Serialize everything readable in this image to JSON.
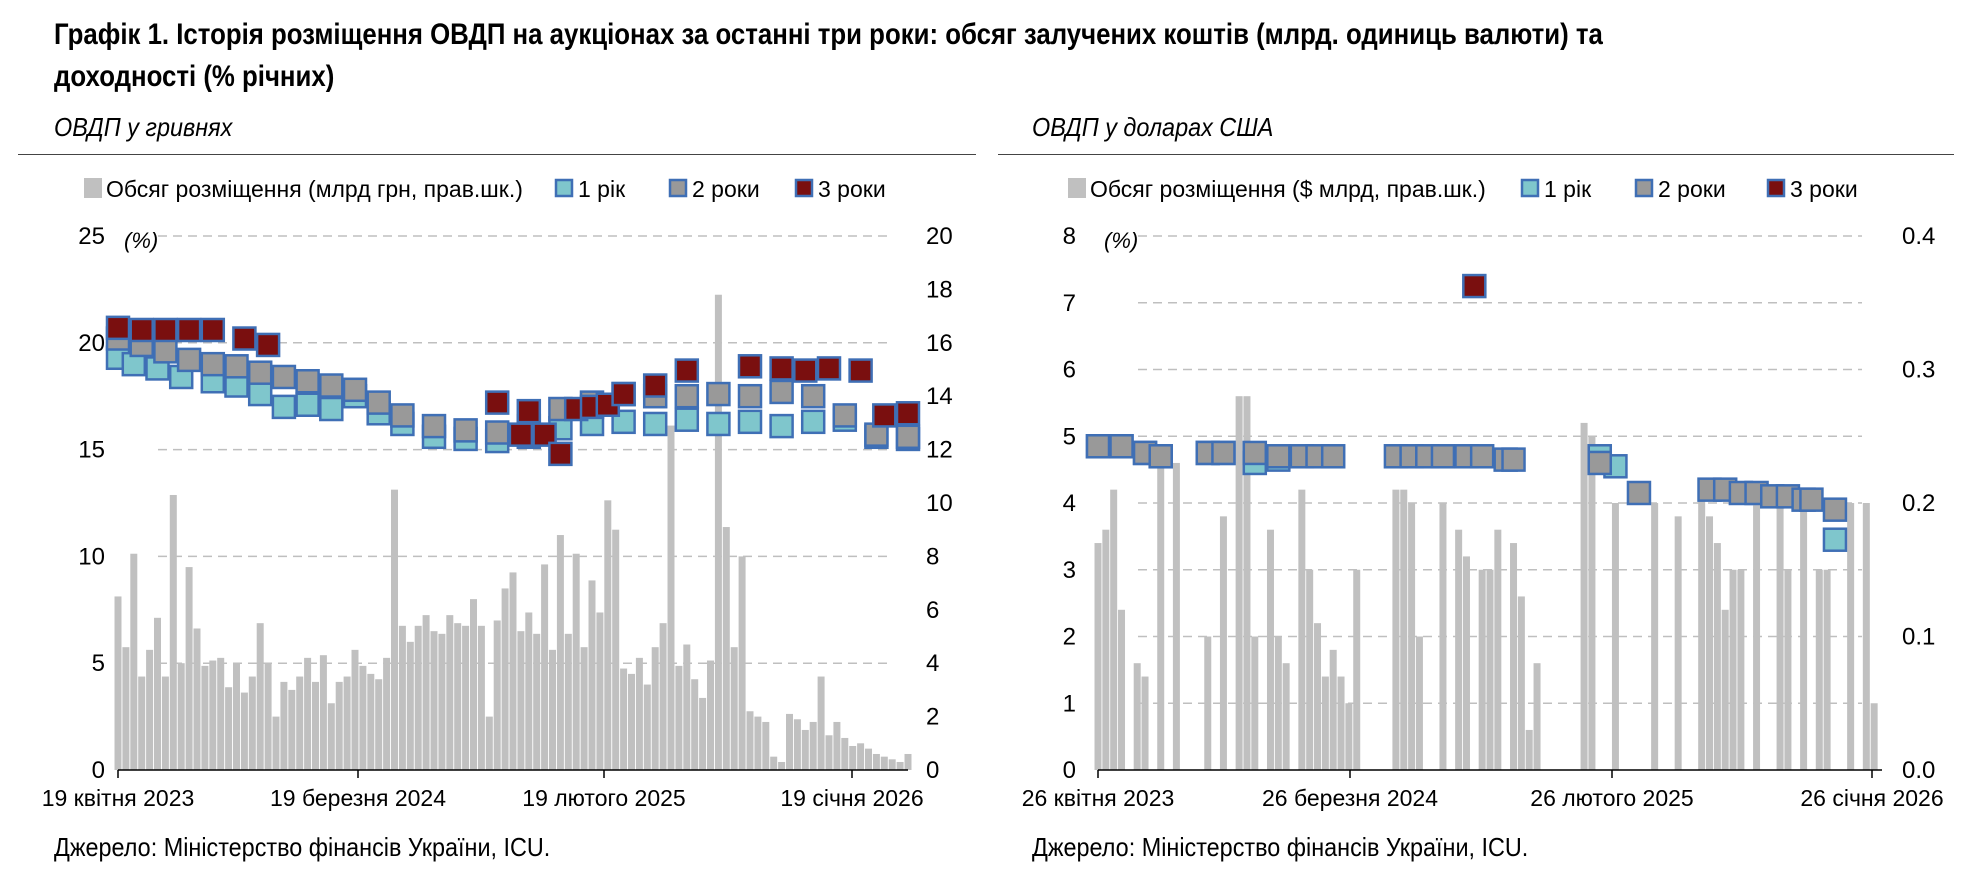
{
  "title": "Графік 1. Історія розміщення ОВДП на аукціонах за останні три роки: обсяг залучених коштів (млрд. одиниць валюти) та доходності (% річних)",
  "source": "Джерело: Міністерство фінансів України, ICU.",
  "colors": {
    "volume": "#c0c0c0",
    "y1": "#7fc6cc",
    "y2": "#999999",
    "y3": "#7a0f0f",
    "marker_edge": "#3f6fb5",
    "grid": "#bfbfbf"
  },
  "chart_data": [
    {
      "type": "bar",
      "subtitle": "ОВДП у гривнях",
      "units_label": "(%)",
      "legend": [
        "Обсяг розміщення (млрд грн, прав.шк.)",
        "1 рік",
        "2 роки",
        "3 роки"
      ],
      "x_ticks": [
        "19 квітня 2023",
        "19 березня 2024",
        "19 лютого 2025",
        "19 січня 2026"
      ],
      "y_left": {
        "min": 0,
        "max": 25,
        "ticks": [
          0,
          5,
          10,
          15,
          20,
          25
        ]
      },
      "y_right": {
        "min": 0,
        "max": 20,
        "ticks": [
          0,
          2,
          4,
          6,
          8,
          10,
          12,
          14,
          16,
          18,
          20
        ]
      },
      "x_range": [
        0,
        1
      ],
      "grid": true,
      "legend_position": "top",
      "bar_series": {
        "name": "Обсяг розміщення (млрд грн, прав.шк.)",
        "axis": "right",
        "x": [
          0.0,
          0.01,
          0.02,
          0.03,
          0.04,
          0.05,
          0.06,
          0.07,
          0.08,
          0.09,
          0.1,
          0.11,
          0.12,
          0.13,
          0.14,
          0.15,
          0.16,
          0.17,
          0.18,
          0.19,
          0.2,
          0.21,
          0.22,
          0.23,
          0.24,
          0.25,
          0.26,
          0.27,
          0.28,
          0.29,
          0.3,
          0.31,
          0.32,
          0.33,
          0.34,
          0.35,
          0.36,
          0.37,
          0.38,
          0.39,
          0.4,
          0.41,
          0.42,
          0.43,
          0.44,
          0.45,
          0.46,
          0.47,
          0.48,
          0.49,
          0.5,
          0.51,
          0.52,
          0.53,
          0.54,
          0.55,
          0.56,
          0.57,
          0.58,
          0.59,
          0.6,
          0.61,
          0.62,
          0.63,
          0.64,
          0.65,
          0.66,
          0.67,
          0.68,
          0.69,
          0.7,
          0.71,
          0.72,
          0.73,
          0.74,
          0.75,
          0.76,
          0.77,
          0.78,
          0.79,
          0.8,
          0.81,
          0.82,
          0.83,
          0.84,
          0.85,
          0.86,
          0.87,
          0.88,
          0.89,
          0.9,
          0.91,
          0.92,
          0.93,
          0.94,
          0.95,
          0.96,
          0.97,
          0.98,
          0.99,
          1.0
        ],
        "values": [
          6.5,
          4.6,
          8.1,
          3.5,
          4.5,
          5.7,
          3.5,
          10.3,
          4.0,
          7.6,
          5.3,
          3.9,
          4.1,
          4.2,
          3.1,
          4.0,
          2.9,
          3.5,
          5.5,
          4.0,
          2.0,
          3.3,
          3.0,
          3.5,
          4.2,
          3.3,
          4.3,
          2.5,
          3.3,
          3.5,
          4.5,
          3.9,
          3.6,
          3.4,
          4.2,
          10.5,
          5.4,
          4.8,
          5.4,
          5.8,
          5.2,
          5.1,
          5.8,
          5.5,
          5.4,
          6.4,
          5.4,
          2.0,
          5.6,
          6.8,
          7.4,
          5.2,
          5.9,
          5.1,
          7.7,
          4.5,
          8.8,
          5.1,
          8.1,
          4.6,
          7.1,
          5.9,
          10.1,
          9.0,
          3.8,
          3.6,
          4.2,
          3.2,
          4.6,
          5.5,
          12.9,
          3.9,
          4.7,
          3.4,
          2.7,
          4.1,
          17.8,
          9.1,
          4.6,
          8.0,
          2.2,
          2.0,
          1.8,
          0.5,
          0.3,
          2.1,
          1.9,
          1.5,
          1.8,
          3.5,
          1.3,
          1.8,
          1.2,
          0.9,
          1.0,
          0.8,
          0.6,
          0.5,
          0.4,
          0.3,
          0.6
        ]
      },
      "series": [
        {
          "name": "1 рік",
          "x": [
            0.0,
            0.02,
            0.05,
            0.08,
            0.12,
            0.15,
            0.18,
            0.21,
            0.24,
            0.27,
            0.3,
            0.33,
            0.36,
            0.4,
            0.44,
            0.48,
            0.52,
            0.56,
            0.6,
            0.64,
            0.68,
            0.72,
            0.76,
            0.8,
            0.84,
            0.88,
            0.92,
            0.96,
            1.0
          ],
          "values": [
            19.3,
            19.0,
            18.8,
            18.4,
            18.2,
            18.0,
            17.6,
            17.0,
            17.1,
            16.9,
            17.5,
            16.7,
            16.2,
            15.6,
            15.5,
            15.4,
            15.6,
            16.0,
            16.2,
            16.3,
            16.2,
            16.4,
            16.2,
            16.3,
            16.1,
            16.3,
            16.4,
            15.6,
            15.5
          ]
        },
        {
          "name": "2 роки",
          "x": [
            0.0,
            0.03,
            0.06,
            0.09,
            0.12,
            0.15,
            0.18,
            0.21,
            0.24,
            0.27,
            0.3,
            0.33,
            0.36,
            0.4,
            0.44,
            0.48,
            0.52,
            0.56,
            0.6,
            0.64,
            0.68,
            0.72,
            0.76,
            0.8,
            0.84,
            0.88,
            0.92,
            0.96,
            1.0
          ],
          "values": [
            20.2,
            19.9,
            19.6,
            19.2,
            19.0,
            18.9,
            18.6,
            18.4,
            18.2,
            18.0,
            17.8,
            17.2,
            16.6,
            16.1,
            15.9,
            15.8,
            16.1,
            16.9,
            17.2,
            17.6,
            17.5,
            17.5,
            17.6,
            17.5,
            17.7,
            17.5,
            16.6,
            15.7,
            15.6
          ]
        },
        {
          "name": "3 роки",
          "x": [
            0.0,
            0.03,
            0.06,
            0.09,
            0.12,
            0.16,
            0.19,
            0.48,
            0.51,
            0.52,
            0.54,
            0.56,
            0.58,
            0.6,
            0.62,
            0.64,
            0.68,
            0.72,
            0.8,
            0.84,
            0.87,
            0.9,
            0.94,
            0.97,
            1.0
          ],
          "values": [
            20.7,
            20.6,
            20.6,
            20.6,
            20.6,
            20.2,
            19.9,
            17.2,
            15.7,
            16.8,
            15.7,
            14.8,
            16.9,
            17.0,
            17.1,
            17.6,
            18.0,
            18.7,
            18.9,
            18.8,
            18.7,
            18.8,
            18.7,
            16.6,
            16.7
          ]
        }
      ]
    },
    {
      "type": "bar",
      "subtitle": "ОВДП у доларах США",
      "units_label": "(%)",
      "legend": [
        "Обсяг розміщення ($ млрд, прав.шк.)",
        "1 рік",
        "2 роки",
        "3 роки"
      ],
      "x_ticks": [
        "26 квітня 2023",
        "26 березня 2024",
        "26 лютого 2025",
        "26 січня 2026"
      ],
      "y_left": {
        "min": 0,
        "max": 8,
        "ticks": [
          0,
          1,
          2,
          3,
          4,
          5,
          6,
          7,
          8
        ]
      },
      "y_right": {
        "min": 0.0,
        "max": 0.4,
        "ticks": [
          "0.0",
          "0.1",
          "0.2",
          "0.3",
          "0.4"
        ]
      },
      "x_range": [
        0,
        1
      ],
      "grid": true,
      "legend_position": "top",
      "bar_series": {
        "name": "Обсяг розміщення ($ млрд, прав.шк.)",
        "axis": "right",
        "x": [
          0.0,
          0.01,
          0.02,
          0.03,
          0.05,
          0.06,
          0.08,
          0.1,
          0.14,
          0.16,
          0.18,
          0.19,
          0.2,
          0.22,
          0.23,
          0.24,
          0.26,
          0.27,
          0.28,
          0.29,
          0.3,
          0.31,
          0.32,
          0.33,
          0.38,
          0.39,
          0.4,
          0.41,
          0.44,
          0.46,
          0.47,
          0.49,
          0.5,
          0.51,
          0.53,
          0.54,
          0.55,
          0.56,
          0.62,
          0.63,
          0.66,
          0.71,
          0.74,
          0.77,
          0.78,
          0.79,
          0.8,
          0.81,
          0.82,
          0.84,
          0.87,
          0.88,
          0.9,
          0.92,
          0.93,
          0.96,
          0.98,
          0.99
        ],
        "values": [
          0.17,
          0.18,
          0.21,
          0.12,
          0.08,
          0.07,
          0.23,
          0.23,
          0.1,
          0.19,
          0.28,
          0.28,
          0.1,
          0.18,
          0.1,
          0.08,
          0.21,
          0.15,
          0.11,
          0.07,
          0.09,
          0.07,
          0.05,
          0.15,
          0.21,
          0.21,
          0.2,
          0.1,
          0.2,
          0.18,
          0.16,
          0.15,
          0.15,
          0.18,
          0.17,
          0.13,
          0.03,
          0.08,
          0.26,
          0.25,
          0.2,
          0.2,
          0.19,
          0.21,
          0.19,
          0.17,
          0.12,
          0.15,
          0.15,
          0.2,
          0.2,
          0.15,
          0.2,
          0.15,
          0.15,
          0.2,
          0.2,
          0.05
        ]
      },
      "series": [
        {
          "name": "1 рік",
          "x": [
            0.0,
            0.03,
            0.06,
            0.08,
            0.14,
            0.16,
            0.2,
            0.23,
            0.64,
            0.66,
            0.94
          ],
          "values": [
            4.85,
            4.85,
            4.75,
            4.7,
            4.75,
            4.75,
            4.6,
            4.65,
            4.7,
            4.55,
            3.45
          ]
        },
        {
          "name": "2 роки",
          "x": [
            0.0,
            0.03,
            0.06,
            0.08,
            0.14,
            0.16,
            0.2,
            0.23,
            0.26,
            0.28,
            0.3,
            0.38,
            0.4,
            0.42,
            0.44,
            0.47,
            0.49,
            0.52,
            0.53,
            0.64,
            0.69,
            0.78,
            0.8,
            0.82,
            0.84,
            0.86,
            0.88,
            0.9,
            0.91,
            0.94
          ],
          "values": [
            4.85,
            4.85,
            4.75,
            4.7,
            4.75,
            4.75,
            4.75,
            4.7,
            4.7,
            4.7,
            4.7,
            4.7,
            4.7,
            4.7,
            4.7,
            4.7,
            4.7,
            4.65,
            4.65,
            4.6,
            4.15,
            4.2,
            4.2,
            4.15,
            4.15,
            4.1,
            4.1,
            4.05,
            4.05,
            3.9
          ]
        },
        {
          "name": "3 роки",
          "x": [
            0.48
          ],
          "values": [
            7.25
          ]
        }
      ]
    }
  ]
}
